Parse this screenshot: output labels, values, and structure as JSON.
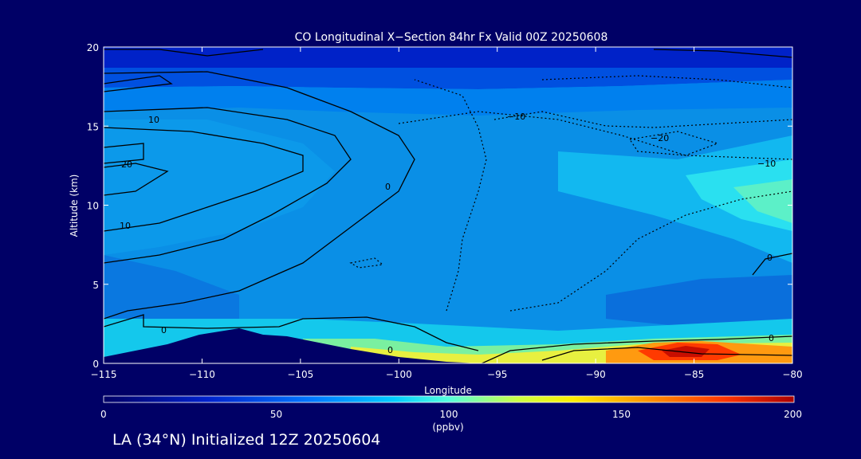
{
  "chart_data": {
    "type": "heatmap",
    "title": "CO Longitudinal X−Section 84hr  Fx Valid 00Z 20250608",
    "xlabel": "Longitude",
    "ylabel": "Altitude (km)",
    "xlim": [
      -115,
      -80
    ],
    "ylim": [
      0,
      20
    ],
    "x_ticks": [
      -115,
      -110,
      -105,
      -100,
      -95,
      -90,
      -85,
      -80
    ],
    "x_tick_labels": [
      "−115",
      "−110",
      "−105",
      "−100",
      "−95",
      "−90",
      "−85",
      "−80"
    ],
    "y_ticks": [
      0,
      5,
      10,
      15,
      20
    ],
    "y_tick_labels": [
      "0",
      "5",
      "10",
      "15",
      "20"
    ],
    "colorbar": {
      "label": "(ppbv)",
      "min": 0,
      "max": 200,
      "ticks": [
        0,
        50,
        100,
        150,
        200
      ],
      "tick_labels": [
        "0",
        "50",
        "100",
        "150",
        "200"
      ],
      "colors": [
        "#000099",
        "#0044ee",
        "#0099ff",
        "#00ddff",
        "#66ffcc",
        "#ffff44",
        "#ff9900",
        "#ff3300",
        "#aa0000"
      ]
    },
    "field_samples": {
      "description_x": "longitude",
      "x": [
        -115,
        -110,
        -105,
        -100,
        -95,
        -90,
        -85,
        -80
      ],
      "altitudes": [
        1,
        3,
        8,
        12,
        16,
        19
      ],
      "co_ppbv": [
        [
          60,
          60,
          80,
          110,
          70,
          120,
          170,
          150
        ],
        [
          55,
          50,
          55,
          60,
          62,
          60,
          58,
          70
        ],
        [
          60,
          55,
          55,
          58,
          62,
          60,
          62,
          75
        ],
        [
          65,
          60,
          60,
          60,
          65,
          70,
          75,
          85
        ],
        [
          55,
          50,
          52,
          55,
          58,
          60,
          62,
          65
        ],
        [
          30,
          30,
          30,
          30,
          30,
          30,
          30,
          30
        ]
      ]
    },
    "contour_labels": [
      "0",
      "0",
      "0",
      "0",
      "0",
      "10",
      "20",
      "10",
      "−10",
      "−20",
      "−10"
    ]
  },
  "footer": "LA (34°N) Initialized 12Z 20250604"
}
